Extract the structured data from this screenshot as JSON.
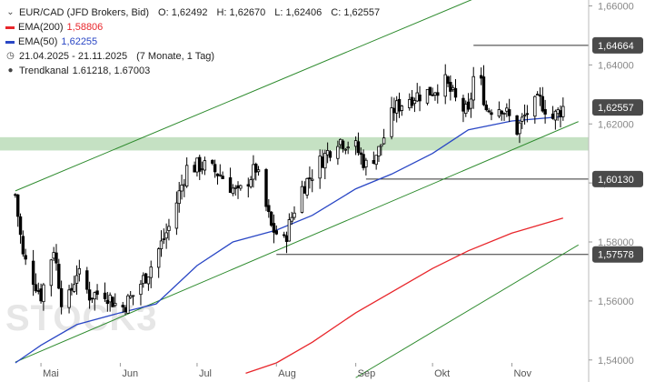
{
  "legend": {
    "instrument": "EUR/CAD (JFD Brokers, Bid)",
    "open": "O: 1,62492",
    "high": "H: 1,62670",
    "low": "L: 1,62406",
    "close": "C: 1,62557",
    "ema200_label": "EMA(200)",
    "ema200_value": "1,58806",
    "ema50_label": "EMA(50)",
    "ema50_value": "1,62255",
    "range": "21.04.2025 - 21.11.2025",
    "range_detail": "(7 Monate, 1 Tag)",
    "channel_label": "Trendkanal",
    "channel_values": "1.61218, 1.67003"
  },
  "watermark": "STOCK3",
  "colors": {
    "ema200": "#e8262b",
    "ema50": "#2a47c5",
    "channel": "#2e8b2e",
    "zone": "#b7d9b4",
    "candle": "#000000"
  },
  "chart_data": {
    "type": "candlestick",
    "instrument": "EUR/CAD",
    "x_range": [
      "2025-04-21",
      "2025-11-21"
    ],
    "ylim": [
      1.535,
      1.662
    ],
    "y_ticks": [
      "1,54000",
      "1,56000",
      "1,58000",
      "1,60000",
      "1,62000",
      "1,64000",
      "1,66000"
    ],
    "y_tick_values": [
      1.54,
      1.56,
      1.58,
      1.6,
      1.62,
      1.64,
      1.66
    ],
    "x_ticks": [
      {
        "label": "Mai",
        "date": "2025-05-01"
      },
      {
        "label": "Jun",
        "date": "2025-06-01"
      },
      {
        "label": "Jul",
        "date": "2025-07-01"
      },
      {
        "label": "Aug",
        "date": "2025-08-01"
      },
      {
        "label": "Sep",
        "date": "2025-09-01"
      },
      {
        "label": "Okt",
        "date": "2025-10-01"
      },
      {
        "label": "Nov",
        "date": "2025-11-01"
      }
    ],
    "price_labels": [
      {
        "text": "1,64664",
        "value": 1.64664,
        "from_date": "2025-10-17"
      },
      {
        "text": "1,62557",
        "value": 1.62557,
        "current": true
      },
      {
        "text": "1,60130",
        "value": 1.6013,
        "from_date": "2025-09-05"
      },
      {
        "text": "1,57578",
        "value": 1.57578,
        "from_date": "2025-08-01"
      }
    ],
    "support_zone": [
      1.611,
      1.6155
    ],
    "channel_lines": [
      {
        "start": [
          "2025-04-21",
          1.5973
        ],
        "end": [
          "2025-10-27",
          1.666
        ]
      },
      {
        "start": [
          "2025-04-21",
          1.5393
        ],
        "end": [
          "2025-11-27",
          1.6208
        ]
      },
      {
        "start": [
          "2025-09-01",
          1.534
        ],
        "end": [
          "2025-11-27",
          1.579
        ]
      }
    ],
    "ema50": [
      [
        "2025-04-21",
        1.539
      ],
      [
        "2025-05-01",
        1.545
      ],
      [
        "2025-05-15",
        1.552
      ],
      [
        "2025-06-01",
        1.556
      ],
      [
        "2025-06-15",
        1.559
      ],
      [
        "2025-07-01",
        1.572
      ],
      [
        "2025-07-15",
        1.58
      ],
      [
        "2025-08-01",
        1.584
      ],
      [
        "2025-08-15",
        1.589
      ],
      [
        "2025-09-01",
        1.598
      ],
      [
        "2025-09-15",
        1.603
      ],
      [
        "2025-10-01",
        1.61
      ],
      [
        "2025-10-15",
        1.618
      ],
      [
        "2025-11-01",
        1.621
      ],
      [
        "2025-11-21",
        1.6225
      ]
    ],
    "ema200": [
      [
        "2025-07-20",
        1.5355
      ],
      [
        "2025-08-01",
        1.539
      ],
      [
        "2025-08-15",
        1.546
      ],
      [
        "2025-09-01",
        1.556
      ],
      [
        "2025-09-15",
        1.563
      ],
      [
        "2025-10-01",
        1.571
      ],
      [
        "2025-10-15",
        1.577
      ],
      [
        "2025-11-01",
        1.583
      ],
      [
        "2025-11-21",
        1.5881
      ]
    ],
    "close_path": [
      [
        "2025-04-21",
        1.596
      ],
      [
        "2025-04-24",
        1.575
      ],
      [
        "2025-05-01",
        1.562
      ],
      [
        "2025-05-06",
        1.578
      ],
      [
        "2025-05-10",
        1.555
      ],
      [
        "2025-05-15",
        1.57
      ],
      [
        "2025-05-20",
        1.562
      ],
      [
        "2025-05-26",
        1.563
      ],
      [
        "2025-06-01",
        1.557
      ],
      [
        "2025-06-06",
        1.562
      ],
      [
        "2025-06-12",
        1.57
      ],
      [
        "2025-06-20",
        1.585
      ],
      [
        "2025-06-27",
        1.605
      ],
      [
        "2025-07-03",
        1.606
      ],
      [
        "2025-07-10",
        1.603
      ],
      [
        "2025-07-17",
        1.596
      ],
      [
        "2025-07-24",
        1.605
      ],
      [
        "2025-07-30",
        1.585
      ],
      [
        "2025-08-04",
        1.58
      ],
      [
        "2025-08-10",
        1.597
      ],
      [
        "2025-08-18",
        1.607
      ],
      [
        "2025-08-25",
        1.615
      ],
      [
        "2025-09-01",
        1.612
      ],
      [
        "2025-09-05",
        1.606
      ],
      [
        "2025-09-10",
        1.611
      ],
      [
        "2025-09-16",
        1.625
      ],
      [
        "2025-09-22",
        1.629
      ],
      [
        "2025-09-30",
        1.631
      ],
      [
        "2025-10-06",
        1.634
      ],
      [
        "2025-10-10",
        1.628
      ],
      [
        "2025-10-15",
        1.623
      ],
      [
        "2025-10-18",
        1.642
      ],
      [
        "2025-10-22",
        1.625
      ],
      [
        "2025-10-28",
        1.626
      ],
      [
        "2025-11-03",
        1.618
      ],
      [
        "2025-11-07",
        1.624
      ],
      [
        "2025-11-12",
        1.628
      ],
      [
        "2025-11-17",
        1.622
      ],
      [
        "2025-11-21",
        1.6256
      ]
    ]
  }
}
